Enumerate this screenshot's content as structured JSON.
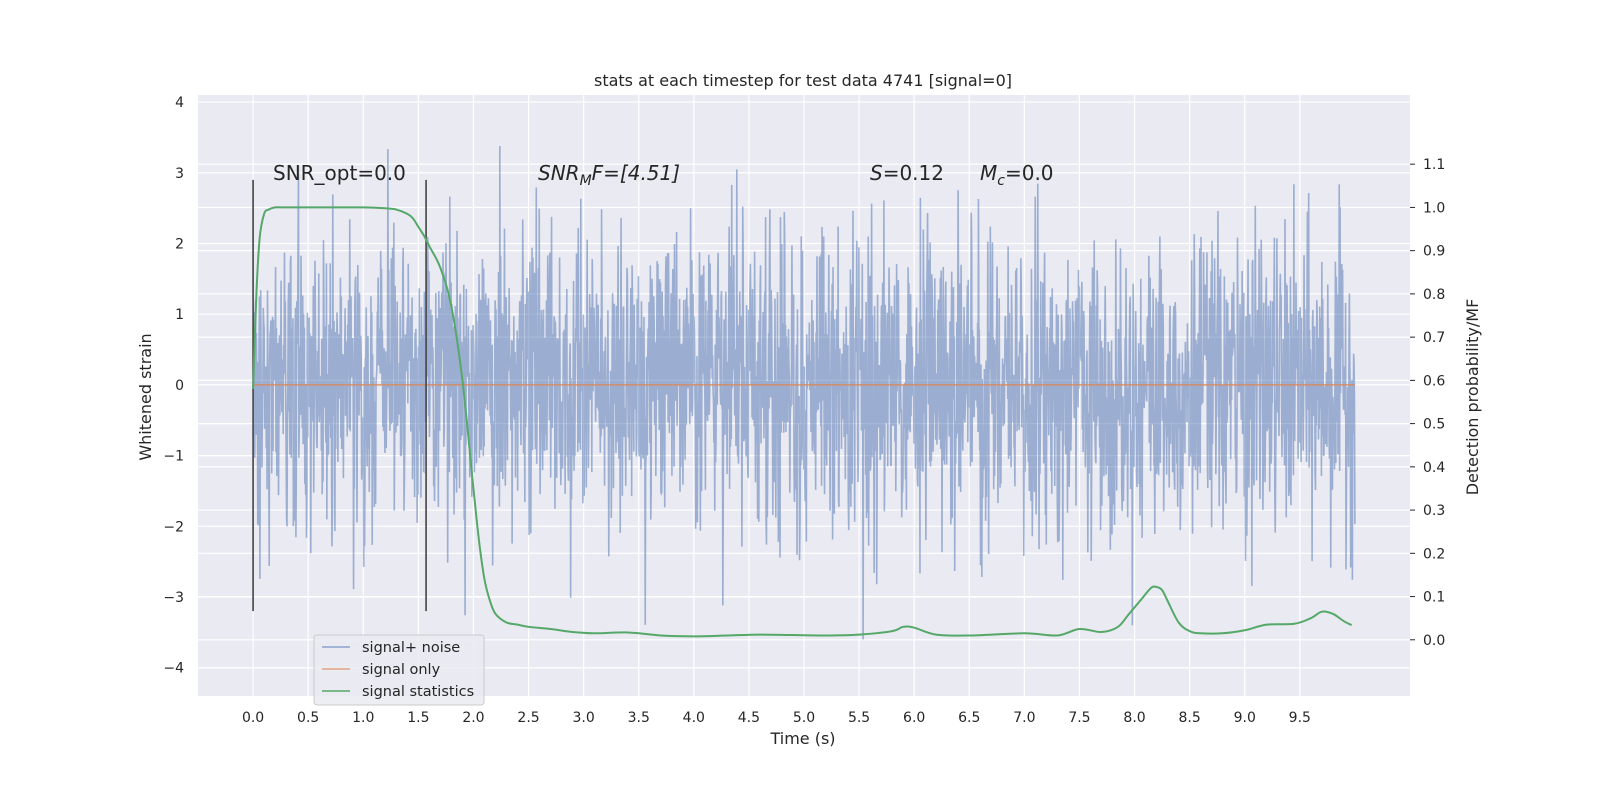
{
  "chart_data": {
    "type": "line",
    "title": "stats at each timestep for test data 4741 [signal=0]",
    "xlabel": "Time (s)",
    "ylabel": "Whitened strain",
    "ylabel_right": "Detection probability/MF",
    "xlim": [
      -0.5,
      10.5
    ],
    "ylim": [
      -4.4,
      4.1
    ],
    "ylim_right": [
      -0.13,
      1.26
    ],
    "x_ticks": [
      "0.0",
      "0.5",
      "1.0",
      "1.5",
      "2.0",
      "2.5",
      "3.0",
      "3.5",
      "4.0",
      "4.5",
      "5.0",
      "5.5",
      "6.0",
      "6.5",
      "7.0",
      "7.5",
      "8.0",
      "8.5",
      "9.0",
      "9.5"
    ],
    "y_ticks": [
      "−4",
      "−3",
      "−2",
      "−1",
      "0",
      "1",
      "2",
      "3",
      "4"
    ],
    "y_right_ticks": [
      "0.0",
      "0.1",
      "0.2",
      "0.3",
      "0.4",
      "0.5",
      "0.6",
      "0.7",
      "0.8",
      "0.9",
      "1.0",
      "1.1"
    ],
    "grid": true,
    "legend_position": "lower-left",
    "annotations": {
      "snr_opt": "SNR_opt=0.0",
      "snr_mf_main": "SNR",
      "snr_mf_sub": "M",
      "snr_mf_rest": "F=[4.51]",
      "s_main": "S",
      "s_rest": "=0.12",
      "mc_main": "M",
      "mc_sub": "c",
      "mc_rest": "=0.0"
    },
    "vertical_markers": [
      0.0,
      1.57
    ],
    "series": [
      {
        "name": "signal+ noise",
        "color": "#4c72b0",
        "x_range": [
          0.0,
          10.0
        ],
        "typical_amplitude": 1.1,
        "peak_amplitude": 3.7,
        "y_range": [
          -3.6,
          3.7
        ]
      },
      {
        "name": "signal only",
        "color": "#dd8452",
        "x": [
          0.0,
          10.0
        ],
        "y": [
          0.0,
          0.0
        ]
      },
      {
        "name": "signal statistics",
        "color": "#55a868",
        "axis": "right",
        "x": [
          0.0,
          0.03,
          0.06,
          0.1,
          0.14,
          0.2,
          0.3,
          0.5,
          0.8,
          1.0,
          1.2,
          1.3,
          1.4,
          1.45,
          1.5,
          1.55,
          1.6,
          1.7,
          1.8,
          1.9,
          2.0,
          2.05,
          2.1,
          2.15,
          2.2,
          2.3,
          2.4,
          2.5,
          2.7,
          2.9,
          3.1,
          3.4,
          3.7,
          4.0,
          4.3,
          4.6,
          4.9,
          5.2,
          5.5,
          5.8,
          5.9,
          6.0,
          6.2,
          6.5,
          7.0,
          7.3,
          7.5,
          7.7,
          7.85,
          7.95,
          8.05,
          8.15,
          8.2,
          8.25,
          8.3,
          8.4,
          8.5,
          8.6,
          8.8,
          9.0,
          9.2,
          9.45,
          9.6,
          9.7,
          9.8,
          9.9,
          9.97
        ],
        "y": [
          0.58,
          0.8,
          0.93,
          0.985,
          0.995,
          1.0,
          1.0,
          1.0,
          1.0,
          1.0,
          0.998,
          0.995,
          0.985,
          0.975,
          0.955,
          0.935,
          0.91,
          0.86,
          0.77,
          0.6,
          0.35,
          0.23,
          0.14,
          0.09,
          0.06,
          0.04,
          0.035,
          0.03,
          0.025,
          0.018,
          0.015,
          0.017,
          0.01,
          0.008,
          0.01,
          0.012,
          0.011,
          0.01,
          0.012,
          0.02,
          0.03,
          0.028,
          0.012,
          0.01,
          0.015,
          0.01,
          0.025,
          0.018,
          0.03,
          0.06,
          0.09,
          0.12,
          0.122,
          0.115,
          0.09,
          0.04,
          0.02,
          0.015,
          0.015,
          0.022,
          0.035,
          0.037,
          0.05,
          0.065,
          0.06,
          0.043,
          0.034
        ]
      }
    ]
  }
}
